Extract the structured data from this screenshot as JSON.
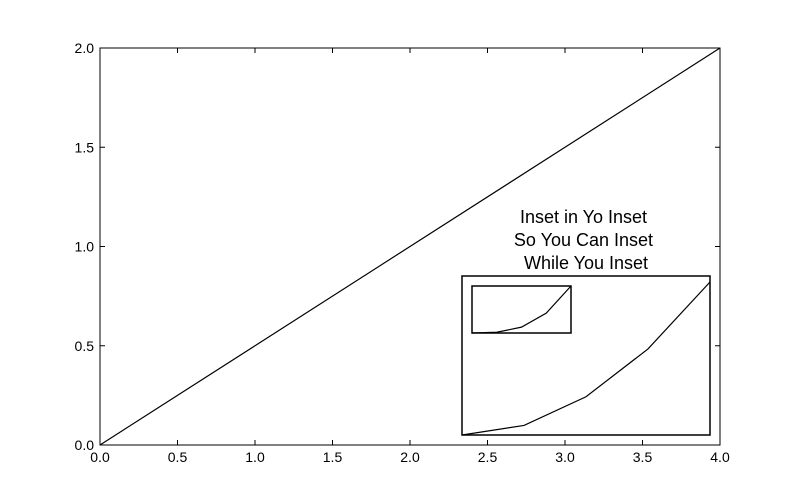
{
  "chart_data": {
    "main": {
      "type": "line",
      "xlim": [
        0.0,
        4.0
      ],
      "ylim": [
        0.0,
        2.0
      ],
      "x_ticks": [
        "0.0",
        "0.5",
        "1.0",
        "1.5",
        "2.0",
        "2.5",
        "3.0",
        "3.5",
        "4.0"
      ],
      "y_ticks": [
        "0.0",
        "0.5",
        "1.0",
        "1.5",
        "2.0"
      ],
      "series": [
        {
          "x": [
            0,
            1,
            2,
            3,
            4
          ],
          "y": [
            0,
            0.5,
            1.0,
            1.5,
            2.0
          ],
          "color": "#000000"
        }
      ],
      "grid": false
    },
    "inset": {
      "type": "line",
      "title_lines": [
        "Inset in Yo Inset",
        "So You Can Inset",
        "While You Inset"
      ],
      "series": [
        {
          "x": [
            0,
            1,
            2,
            3,
            4
          ],
          "y": [
            0,
            1,
            4,
            9,
            16
          ],
          "color": "#000000"
        }
      ]
    },
    "inset_of_inset": {
      "type": "line",
      "series": [
        {
          "x": [
            0,
            1,
            2,
            3,
            4
          ],
          "y": [
            0,
            1,
            8,
            27,
            64
          ],
          "color": "#000000"
        }
      ]
    }
  }
}
